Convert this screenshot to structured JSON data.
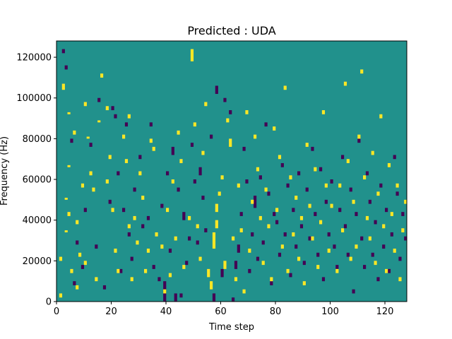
{
  "chart_data": {
    "type": "heatmap",
    "title": "Predicted : UDA",
    "xlabel": "Time step",
    "ylabel": "Frequency (Hz)",
    "xlim": [
      0,
      128
    ],
    "ylim": [
      0,
      128000
    ],
    "x_ticks": [
      0,
      20,
      40,
      60,
      80,
      100,
      120
    ],
    "y_ticks": [
      0,
      20000,
      40000,
      60000,
      80000,
      100000,
      120000
    ],
    "x_tick_labels": [
      "0",
      "20",
      "40",
      "60",
      "80",
      "100",
      "120"
    ],
    "y_tick_labels": [
      "0",
      "20000",
      "40000",
      "60000",
      "80000",
      "100000",
      "120000"
    ],
    "grid": false,
    "legend": "none",
    "colormap": "viridis",
    "background_level": "mid",
    "colors": {
      "low": "#440154",
      "mid": "#21918c",
      "high": "#fde725"
    },
    "n_time_steps": 128,
    "n_freq_bins": 128,
    "bins_note": "each cell = 1 time step x 1000 Hz; background cells are mid level",
    "high_cells": [
      [
        1,
        2,
        4
      ],
      [
        1,
        20,
        22
      ],
      [
        2,
        104,
        107
      ],
      [
        3,
        34,
        35
      ],
      [
        3,
        50,
        51
      ],
      [
        4,
        42,
        44
      ],
      [
        4,
        66,
        67
      ],
      [
        4,
        92,
        93
      ],
      [
        5,
        14,
        16
      ],
      [
        6,
        82,
        84
      ],
      [
        7,
        6,
        8
      ],
      [
        7,
        38,
        40
      ],
      [
        8,
        22,
        24
      ],
      [
        9,
        56,
        58
      ],
      [
        10,
        18,
        20
      ],
      [
        10,
        96,
        98
      ],
      [
        11,
        80,
        81
      ],
      [
        12,
        62,
        64
      ],
      [
        13,
        54,
        56
      ],
      [
        14,
        10,
        12
      ],
      [
        15,
        88,
        89
      ],
      [
        16,
        110,
        112
      ],
      [
        18,
        58,
        60
      ],
      [
        18,
        94,
        96
      ],
      [
        19,
        70,
        72
      ],
      [
        20,
        44,
        46
      ],
      [
        21,
        24,
        26
      ],
      [
        22,
        14,
        16
      ],
      [
        24,
        80,
        82
      ],
      [
        25,
        68,
        70
      ],
      [
        26,
        36,
        38
      ],
      [
        26,
        90,
        92
      ],
      [
        27,
        10,
        12
      ],
      [
        28,
        40,
        42
      ],
      [
        29,
        28,
        30
      ],
      [
        30,
        62,
        64
      ],
      [
        31,
        50,
        52
      ],
      [
        32,
        14,
        16
      ],
      [
        33,
        24,
        26
      ],
      [
        34,
        78,
        80
      ],
      [
        35,
        74,
        76
      ],
      [
        36,
        32,
        34
      ],
      [
        38,
        26,
        28
      ],
      [
        39,
        4,
        6
      ],
      [
        40,
        44,
        46
      ],
      [
        41,
        12,
        14
      ],
      [
        42,
        58,
        60
      ],
      [
        43,
        30,
        32
      ],
      [
        44,
        82,
        84
      ],
      [
        45,
        68,
        70
      ],
      [
        46,
        16,
        18
      ],
      [
        48,
        40,
        42
      ],
      [
        49,
        118,
        124
      ],
      [
        50,
        86,
        88
      ],
      [
        51,
        36,
        38
      ],
      [
        52,
        20,
        22
      ],
      [
        53,
        72,
        74
      ],
      [
        54,
        96,
        98
      ],
      [
        55,
        12,
        16
      ],
      [
        56,
        6,
        10
      ],
      [
        57,
        26,
        34
      ],
      [
        58,
        36,
        40
      ],
      [
        58,
        44,
        48
      ],
      [
        59,
        52,
        54
      ],
      [
        60,
        60,
        62
      ],
      [
        61,
        16,
        20
      ],
      [
        62,
        88,
        90
      ],
      [
        63,
        76,
        80
      ],
      [
        64,
        30,
        32
      ],
      [
        65,
        10,
        12
      ],
      [
        66,
        56,
        58
      ],
      [
        67,
        34,
        36
      ],
      [
        68,
        4,
        6
      ],
      [
        69,
        92,
        94
      ],
      [
        70,
        24,
        26
      ],
      [
        71,
        48,
        50
      ],
      [
        72,
        80,
        82
      ],
      [
        73,
        64,
        66
      ],
      [
        74,
        40,
        42
      ],
      [
        75,
        18,
        20
      ],
      [
        76,
        54,
        56
      ],
      [
        77,
        36,
        38
      ],
      [
        78,
        10,
        12
      ],
      [
        79,
        84,
        86
      ],
      [
        80,
        44,
        46
      ],
      [
        81,
        70,
        72
      ],
      [
        82,
        26,
        28
      ],
      [
        83,
        104,
        106
      ],
      [
        84,
        14,
        16
      ],
      [
        85,
        60,
        62
      ],
      [
        86,
        32,
        34
      ],
      [
        87,
        50,
        52
      ],
      [
        88,
        20,
        22
      ],
      [
        89,
        40,
        42
      ],
      [
        90,
        8,
        10
      ],
      [
        91,
        76,
        78
      ],
      [
        92,
        46,
        48
      ],
      [
        93,
        30,
        32
      ],
      [
        94,
        64,
        66
      ],
      [
        95,
        16,
        18
      ],
      [
        96,
        38,
        40
      ],
      [
        97,
        92,
        94
      ],
      [
        98,
        56,
        58
      ],
      [
        99,
        24,
        26
      ],
      [
        100,
        46,
        48
      ],
      [
        102,
        14,
        16
      ],
      [
        103,
        56,
        58
      ],
      [
        104,
        34,
        36
      ],
      [
        105,
        106,
        108
      ],
      [
        106,
        68,
        70
      ],
      [
        107,
        20,
        22
      ],
      [
        108,
        48,
        50
      ],
      [
        109,
        26,
        28
      ],
      [
        110,
        80,
        82
      ],
      [
        111,
        112,
        114
      ],
      [
        112,
        60,
        62
      ],
      [
        113,
        40,
        42
      ],
      [
        114,
        30,
        32
      ],
      [
        115,
        72,
        74
      ],
      [
        116,
        18,
        20
      ],
      [
        117,
        52,
        54
      ],
      [
        118,
        90,
        92
      ],
      [
        119,
        36,
        38
      ],
      [
        120,
        14,
        16
      ],
      [
        121,
        66,
        68
      ],
      [
        122,
        42,
        44
      ],
      [
        123,
        24,
        26
      ],
      [
        124,
        56,
        58
      ],
      [
        125,
        10,
        12
      ],
      [
        126,
        34,
        36
      ],
      [
        127,
        48,
        50
      ]
    ],
    "low_cells": [
      [
        2,
        122,
        124
      ],
      [
        3,
        114,
        116
      ],
      [
        5,
        78,
        80
      ],
      [
        6,
        8,
        10
      ],
      [
        7,
        28,
        30
      ],
      [
        9,
        16,
        18
      ],
      [
        10,
        44,
        46
      ],
      [
        12,
        76,
        78
      ],
      [
        14,
        26,
        28
      ],
      [
        15,
        98,
        100
      ],
      [
        17,
        6,
        8
      ],
      [
        19,
        48,
        50
      ],
      [
        20,
        94,
        96
      ],
      [
        21,
        90,
        92
      ],
      [
        22,
        62,
        64
      ],
      [
        23,
        14,
        16
      ],
      [
        24,
        44,
        46
      ],
      [
        25,
        86,
        88
      ],
      [
        26,
        32,
        34
      ],
      [
        27,
        20,
        22
      ],
      [
        28,
        54,
        56
      ],
      [
        30,
        70,
        72
      ],
      [
        31,
        36,
        38
      ],
      [
        33,
        40,
        42
      ],
      [
        34,
        86,
        88
      ],
      [
        35,
        16,
        18
      ],
      [
        37,
        10,
        12
      ],
      [
        38,
        46,
        48
      ],
      [
        39,
        0,
        10
      ],
      [
        40,
        62,
        64
      ],
      [
        41,
        24,
        26
      ],
      [
        42,
        72,
        76
      ],
      [
        43,
        0,
        4
      ],
      [
        44,
        54,
        56
      ],
      [
        45,
        2,
        4
      ],
      [
        46,
        40,
        44
      ],
      [
        47,
        18,
        20
      ],
      [
        48,
        30,
        32
      ],
      [
        49,
        76,
        78
      ],
      [
        50,
        58,
        60
      ],
      [
        51,
        28,
        30
      ],
      [
        52,
        62,
        66
      ],
      [
        53,
        50,
        52
      ],
      [
        54,
        34,
        36
      ],
      [
        56,
        80,
        82
      ],
      [
        57,
        0,
        4
      ],
      [
        58,
        102,
        106
      ],
      [
        60,
        12,
        16
      ],
      [
        61,
        98,
        100
      ],
      [
        63,
        92,
        94
      ],
      [
        64,
        0,
        2
      ],
      [
        65,
        16,
        20
      ],
      [
        66,
        24,
        28
      ],
      [
        67,
        42,
        44
      ],
      [
        68,
        74,
        76
      ],
      [
        69,
        58,
        60
      ],
      [
        70,
        14,
        16
      ],
      [
        71,
        32,
        34
      ],
      [
        72,
        46,
        52
      ],
      [
        73,
        20,
        22
      ],
      [
        74,
        60,
        62
      ],
      [
        75,
        28,
        30
      ],
      [
        76,
        86,
        88
      ],
      [
        77,
        52,
        54
      ],
      [
        78,
        8,
        10
      ],
      [
        79,
        42,
        44
      ],
      [
        80,
        38,
        40
      ],
      [
        81,
        22,
        24
      ],
      [
        82,
        66,
        68
      ],
      [
        83,
        32,
        34
      ],
      [
        84,
        56,
        58
      ],
      [
        85,
        12,
        14
      ],
      [
        86,
        44,
        46
      ],
      [
        87,
        26,
        28
      ],
      [
        88,
        62,
        64
      ],
      [
        89,
        36,
        38
      ],
      [
        90,
        18,
        20
      ],
      [
        91,
        54,
        56
      ],
      [
        92,
        30,
        32
      ],
      [
        93,
        74,
        76
      ],
      [
        94,
        42,
        44
      ],
      [
        95,
        22,
        24
      ],
      [
        96,
        64,
        66
      ],
      [
        97,
        10,
        12
      ],
      [
        98,
        48,
        50
      ],
      [
        99,
        32,
        34
      ],
      [
        100,
        58,
        60
      ],
      [
        101,
        26,
        28
      ],
      [
        102,
        16,
        18
      ],
      [
        103,
        44,
        46
      ],
      [
        104,
        70,
        72
      ],
      [
        105,
        36,
        38
      ],
      [
        106,
        22,
        24
      ],
      [
        107,
        54,
        56
      ],
      [
        108,
        4,
        6
      ],
      [
        109,
        42,
        44
      ],
      [
        110,
        78,
        80
      ],
      [
        111,
        30,
        32
      ],
      [
        112,
        16,
        18
      ],
      [
        113,
        62,
        64
      ],
      [
        114,
        48,
        50
      ],
      [
        115,
        22,
        24
      ],
      [
        116,
        38,
        40
      ],
      [
        117,
        10,
        12
      ],
      [
        118,
        56,
        58
      ],
      [
        119,
        26,
        28
      ],
      [
        120,
        44,
        46
      ],
      [
        121,
        14,
        16
      ],
      [
        122,
        32,
        34
      ],
      [
        123,
        70,
        72
      ],
      [
        124,
        52,
        54
      ],
      [
        125,
        20,
        22
      ],
      [
        126,
        42,
        44
      ],
      [
        127,
        30,
        32
      ]
    ]
  }
}
